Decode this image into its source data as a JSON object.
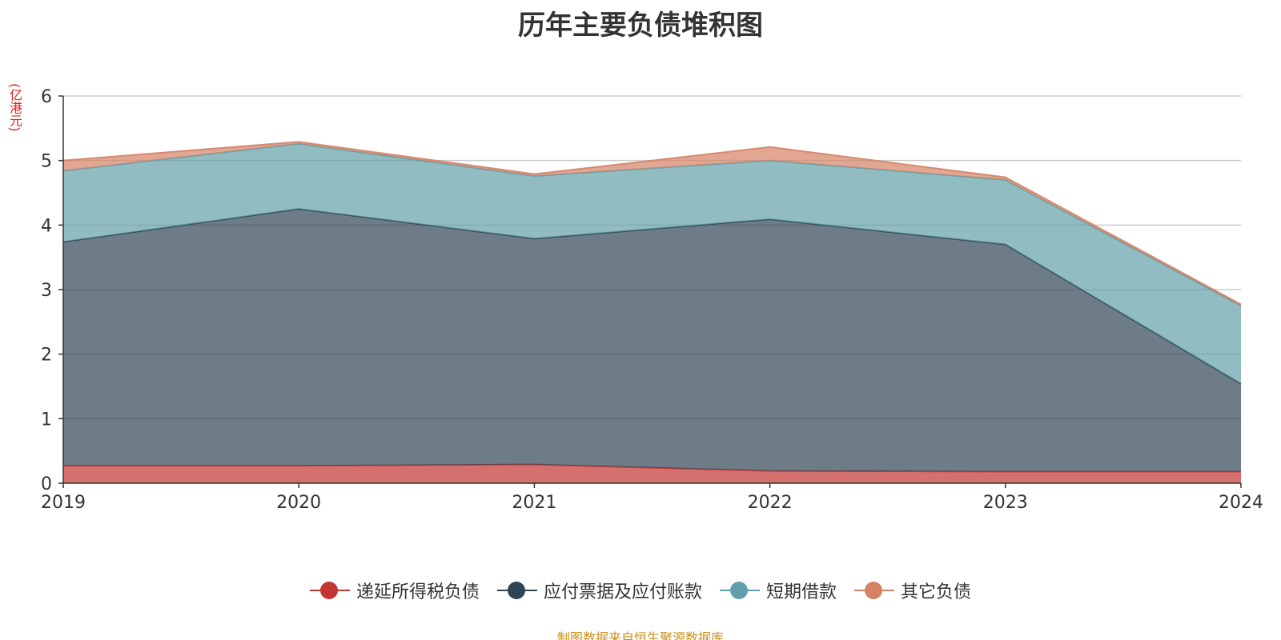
{
  "chart_data": {
    "type": "area",
    "title": "历年主要负债堆积图",
    "ylabel": "(亿港元)",
    "source": "制图数据来自恒生聚源数据库",
    "categories": [
      "2019",
      "2020",
      "2021",
      "2022",
      "2023",
      "2024"
    ],
    "ylim": [
      0,
      6
    ],
    "yticks": [
      "0",
      "1",
      "2",
      "3",
      "4",
      "5",
      "6"
    ],
    "stacked": true,
    "grid": true,
    "legend_position": "bottom",
    "series": [
      {
        "name": "递延所得税负债",
        "color": "#c23531",
        "values": [
          0.27,
          0.27,
          0.29,
          0.19,
          0.18,
          0.18
        ]
      },
      {
        "name": "应付票据及应付账款",
        "color": "#2f4554",
        "values": [
          3.47,
          3.98,
          3.5,
          3.9,
          3.52,
          1.36
        ]
      },
      {
        "name": "短期借款",
        "color": "#61a0a8",
        "values": [
          1.1,
          1.01,
          0.97,
          0.91,
          1.0,
          1.21
        ]
      },
      {
        "name": "其它负债",
        "color": "#d48265",
        "values": [
          0.16,
          0.03,
          0.03,
          0.21,
          0.04,
          0.02
        ]
      }
    ]
  }
}
